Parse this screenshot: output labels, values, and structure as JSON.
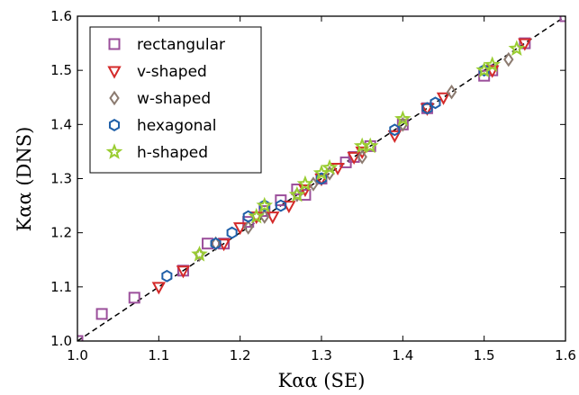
{
  "chart_data": {
    "type": "scatter",
    "xlabel": "Kαα (SE)",
    "ylabel": "Kαα (DNS)",
    "xlim": [
      1.0,
      1.6
    ],
    "ylim": [
      1.0,
      1.6
    ],
    "xticks": [
      "1.0",
      "1.1",
      "1.2",
      "1.3",
      "1.4",
      "1.5",
      "1.6"
    ],
    "yticks": [
      "1.0",
      "1.1",
      "1.2",
      "1.3",
      "1.4",
      "1.5",
      "1.6"
    ],
    "legend_position": "top-left",
    "reference_line": {
      "style": "dashed",
      "color": "#000000",
      "from": [
        1.0,
        1.0
      ],
      "to": [
        1.6,
        1.6
      ]
    },
    "series": [
      {
        "name": "rectangular",
        "marker": "square",
        "color": "#9b4f9b",
        "points": [
          [
            1.0,
            1.0
          ],
          [
            1.03,
            1.05
          ],
          [
            1.07,
            1.08
          ],
          [
            1.13,
            1.13
          ],
          [
            1.16,
            1.18
          ],
          [
            1.18,
            1.18
          ],
          [
            1.21,
            1.22
          ],
          [
            1.23,
            1.24
          ],
          [
            1.25,
            1.26
          ],
          [
            1.27,
            1.28
          ],
          [
            1.28,
            1.27
          ],
          [
            1.3,
            1.3
          ],
          [
            1.33,
            1.33
          ],
          [
            1.34,
            1.34
          ],
          [
            1.36,
            1.36
          ],
          [
            1.4,
            1.4
          ],
          [
            1.43,
            1.43
          ],
          [
            1.5,
            1.49
          ],
          [
            1.51,
            1.5
          ],
          [
            1.55,
            1.55
          ],
          [
            1.6,
            1.6
          ]
        ]
      },
      {
        "name": "v-shaped",
        "marker": "triangle-down",
        "color": "#d42a2a",
        "points": [
          [
            1.1,
            1.1
          ],
          [
            1.13,
            1.13
          ],
          [
            1.18,
            1.18
          ],
          [
            1.2,
            1.21
          ],
          [
            1.22,
            1.23
          ],
          [
            1.24,
            1.23
          ],
          [
            1.26,
            1.25
          ],
          [
            1.28,
            1.28
          ],
          [
            1.3,
            1.3
          ],
          [
            1.32,
            1.32
          ],
          [
            1.34,
            1.34
          ],
          [
            1.35,
            1.35
          ],
          [
            1.39,
            1.38
          ],
          [
            1.43,
            1.43
          ],
          [
            1.45,
            1.45
          ],
          [
            1.51,
            1.5
          ],
          [
            1.55,
            1.55
          ]
        ]
      },
      {
        "name": "w-shaped",
        "marker": "diamond",
        "color": "#8c7b70",
        "points": [
          [
            1.15,
            1.16
          ],
          [
            1.17,
            1.18
          ],
          [
            1.21,
            1.21
          ],
          [
            1.23,
            1.23
          ],
          [
            1.27,
            1.27
          ],
          [
            1.29,
            1.29
          ],
          [
            1.31,
            1.31
          ],
          [
            1.35,
            1.34
          ],
          [
            1.4,
            1.4
          ],
          [
            1.46,
            1.46
          ],
          [
            1.53,
            1.52
          ]
        ]
      },
      {
        "name": "hexagonal",
        "marker": "hexagon",
        "color": "#1f5fa8",
        "points": [
          [
            1.11,
            1.12
          ],
          [
            1.17,
            1.18
          ],
          [
            1.19,
            1.2
          ],
          [
            1.21,
            1.23
          ],
          [
            1.23,
            1.25
          ],
          [
            1.25,
            1.25
          ],
          [
            1.3,
            1.3
          ],
          [
            1.39,
            1.39
          ],
          [
            1.43,
            1.43
          ],
          [
            1.44,
            1.44
          ],
          [
            1.5,
            1.5
          ]
        ]
      },
      {
        "name": "h-shaped",
        "marker": "star",
        "color": "#9acd32",
        "points": [
          [
            1.15,
            1.16
          ],
          [
            1.22,
            1.23
          ],
          [
            1.23,
            1.25
          ],
          [
            1.27,
            1.27
          ],
          [
            1.28,
            1.29
          ],
          [
            1.3,
            1.31
          ],
          [
            1.31,
            1.32
          ],
          [
            1.35,
            1.36
          ],
          [
            1.36,
            1.36
          ],
          [
            1.4,
            1.41
          ],
          [
            1.5,
            1.5
          ],
          [
            1.51,
            1.51
          ],
          [
            1.54,
            1.54
          ]
        ]
      }
    ]
  }
}
